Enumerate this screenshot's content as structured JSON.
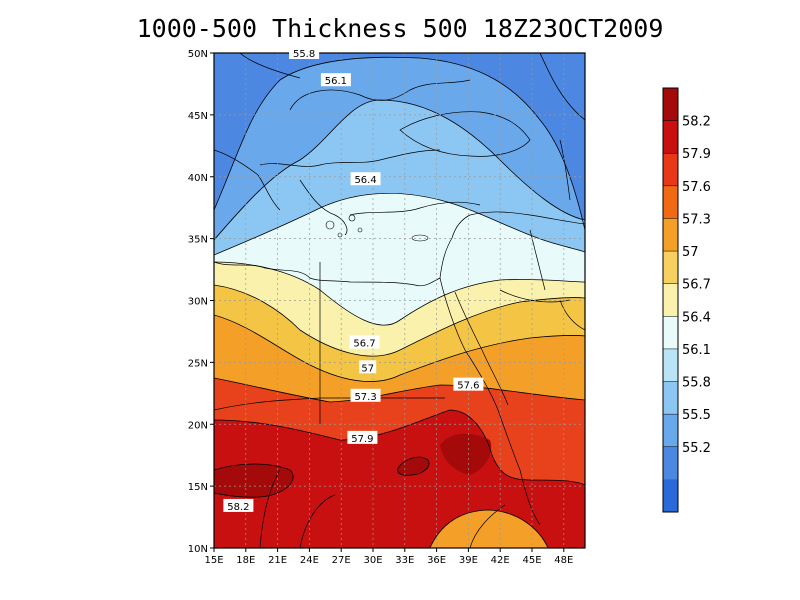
{
  "title": "1000-500 Thickness 500 18Z23OCT2009",
  "map": {
    "lon_range": [
      15,
      50
    ],
    "lat_range": [
      10,
      50
    ],
    "x_ticks": [
      "15E",
      "18E",
      "21E",
      "24E",
      "27E",
      "30E",
      "33E",
      "36E",
      "39E",
      "42E",
      "45E",
      "48E"
    ],
    "x_tick_values": [
      15,
      18,
      21,
      24,
      27,
      30,
      33,
      36,
      39,
      42,
      45,
      48
    ],
    "y_ticks": [
      "10N",
      "15N",
      "20N",
      "25N",
      "30N",
      "35N",
      "40N",
      "45N",
      "50N"
    ],
    "y_tick_values": [
      10,
      15,
      20,
      25,
      30,
      35,
      40,
      45,
      50
    ],
    "grid": "dotted"
  },
  "contour_labels": [
    {
      "text": "55.8",
      "lon": 23.5,
      "lat": 50
    },
    {
      "text": "56.1",
      "lon": 26.5,
      "lat": 47.8
    },
    {
      "text": "56.4",
      "lon": 29.3,
      "lat": 39.8
    },
    {
      "text": "56.7",
      "lon": 29.2,
      "lat": 26.6
    },
    {
      "text": "57",
      "lon": 29.5,
      "lat": 24.6
    },
    {
      "text": "57.3",
      "lon": 29.3,
      "lat": 22.3
    },
    {
      "text": "57.6",
      "lon": 39.0,
      "lat": 23.2
    },
    {
      "text": "57.9",
      "lon": 29.0,
      "lat": 18.9
    },
    {
      "text": "58.2",
      "lon": 17.3,
      "lat": 13.4
    }
  ],
  "colorbar": {
    "labels": [
      "58.2",
      "57.9",
      "57.6",
      "57.3",
      "57",
      "56.7",
      "56.4",
      "56.1",
      "55.8",
      "55.5",
      "55.2"
    ],
    "colors": [
      "#a50a0a",
      "#c81010",
      "#e83818",
      "#f06a14",
      "#f4a028",
      "#f8d060",
      "#faf2ac",
      "#e8fafa",
      "#b8e4f6",
      "#8cc6f2",
      "#6aa8ec",
      "#4c88e2",
      "#2a6ad8"
    ]
  },
  "colors": {
    "band_55_8": "#4c88e2",
    "band_56_1": "#6aa8ec",
    "band_56_4": "#8cc6f2",
    "band_56_7": "#e8fafa",
    "band_57_0": "#faf2ac",
    "band_57_3": "#f4c444",
    "band_57_6": "#f4a028",
    "band_57_9": "#e8421c",
    "band_58_2": "#c81010",
    "band_58_5": "#a50a0a"
  }
}
